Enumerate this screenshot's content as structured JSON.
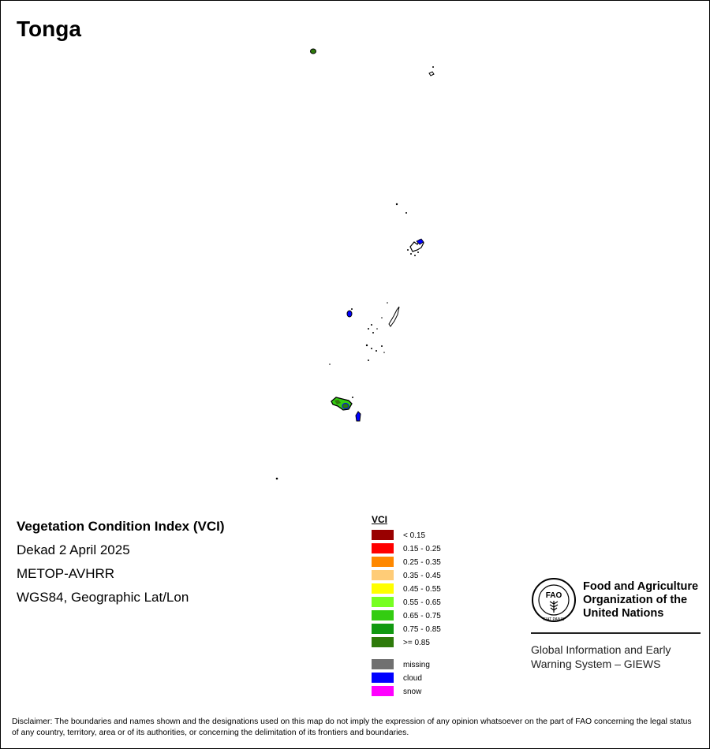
{
  "map": {
    "title": "Tonga",
    "info": {
      "index_name": "Vegetation Condition Index (VCI)",
      "period": "Dekad 2 April 2025",
      "sensor": "METOP-AVHRR",
      "projection": "WGS84, Geographic Lat/Lon"
    }
  },
  "legend": {
    "title": "VCI",
    "classes": [
      {
        "label": "< 0.15",
        "color": "#990000"
      },
      {
        "label": "0.15 - 0.25",
        "color": "#ff0000"
      },
      {
        "label": "0.25 - 0.35",
        "color": "#ff8800"
      },
      {
        "label": "0.35 - 0.45",
        "color": "#ffcc77"
      },
      {
        "label": "0.45 - 0.55",
        "color": "#ffff00"
      },
      {
        "label": "0.55 - 0.65",
        "color": "#77ff22"
      },
      {
        "label": "0.65 - 0.75",
        "color": "#33cc11"
      },
      {
        "label": "0.75 - 0.85",
        "color": "#119911"
      },
      {
        "label": ">= 0.85",
        "color": "#2e7a0b"
      }
    ],
    "extra": [
      {
        "label": "missing",
        "color": "#707070"
      },
      {
        "label": "cloud",
        "color": "#0000ff"
      },
      {
        "label": "snow",
        "color": "#ff00ff"
      }
    ]
  },
  "logo": {
    "fao_lines": [
      "Food and Agriculture",
      "Organization of the",
      "United Nations"
    ],
    "emblem_text": "FAO",
    "emblem_motto": "FIAT PANIS",
    "giews_lines": [
      "Global Information and Early",
      "Warning System – GIEWS"
    ]
  },
  "disclaimer": "Disclaimer: The boundaries and names shown and the designations used on this map do not imply the expression of any opinion whatsoever on the part of FAO concerning the legal status of any country, territory, area or of its authorities, or concerning the delimitation of its frontiers and boundaries."
}
